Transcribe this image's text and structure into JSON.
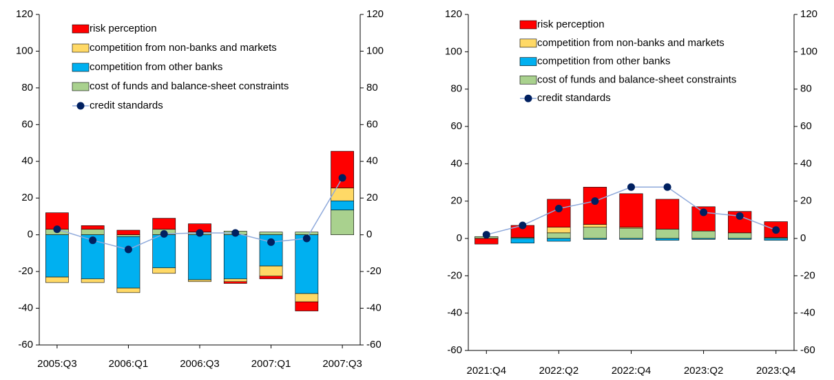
{
  "chart_data": [
    {
      "type": "bar",
      "categories": [
        "2005:Q3",
        null,
        "2006:Q1",
        null,
        "2006:Q3",
        null,
        "2007:Q1",
        null,
        "2007:Q3"
      ],
      "series": [
        {
          "name": "risk perception",
          "color": "#ff0000",
          "values": [
            9,
            2,
            2.5,
            6,
            4.5,
            -1,
            -1.5,
            -5,
            20
          ]
        },
        {
          "name": "competition from non-banks and markets",
          "color": "#ffd966",
          "values": [
            -3,
            -2,
            -2.5,
            -3,
            -1,
            -1.5,
            -5.5,
            -4.5,
            7
          ]
        },
        {
          "name": "competition from other banks",
          "color": "#00b0f0",
          "values": [
            -23,
            -24,
            -28,
            -18,
            -24.5,
            -24,
            -17,
            -32,
            5
          ]
        },
        {
          "name": "cost of funds and balance-sheet constraints",
          "color": "#a9d18e",
          "values": [
            3,
            3,
            -1,
            3,
            1.5,
            2,
            1.5,
            1.5,
            13.5
          ]
        },
        {
          "name": "credit standards",
          "type": "line",
          "color": "#8ea9db",
          "marker_color": "#002060",
          "values": [
            3,
            -3,
            -8,
            0.5,
            1,
            1,
            -4,
            -2,
            31
          ]
        }
      ],
      "ylim": [
        -60,
        120
      ],
      "yticks": [
        -60,
        -40,
        -20,
        0,
        20,
        40,
        60,
        80,
        100,
        120
      ],
      "y2lim": [
        -60,
        120
      ],
      "y2ticks": [
        -60,
        -40,
        -20,
        0,
        20,
        40,
        60,
        80,
        100,
        120
      ],
      "grid": false,
      "legend": "top-left"
    },
    {
      "type": "bar",
      "categories": [
        "2021:Q4",
        null,
        "2022:Q2",
        null,
        "2022:Q4",
        null,
        "2023:Q2",
        null,
        "2023:Q4"
      ],
      "series": [
        {
          "name": "risk perception",
          "color": "#ff0000",
          "values": [
            -3,
            6.5,
            15,
            20,
            18,
            16,
            13,
            11.5,
            8.5
          ]
        },
        {
          "name": "competition from non-banks and markets",
          "color": "#ffd966",
          "values": [
            0,
            0,
            3,
            1.5,
            0.5,
            0,
            0,
            0,
            0
          ]
        },
        {
          "name": "competition from other banks",
          "color": "#00b0f0",
          "values": [
            0,
            -2.5,
            -1.5,
            -0.5,
            -0.5,
            -1,
            -0.5,
            -0.5,
            -1
          ]
        },
        {
          "name": "cost of funds and balance-sheet constraints",
          "color": "#a9d18e",
          "values": [
            1,
            0.5,
            3,
            6,
            5.5,
            5,
            4,
            3,
            0.5
          ]
        },
        {
          "name": "credit standards",
          "type": "line",
          "color": "#8ea9db",
          "marker_color": "#002060",
          "values": [
            2,
            7,
            16,
            20,
            27.5,
            27.5,
            14,
            12,
            4.5
          ]
        }
      ],
      "ylim": [
        -60,
        120
      ],
      "yticks": [
        -60,
        -40,
        -20,
        0,
        20,
        40,
        60,
        80,
        100,
        120
      ],
      "y2lim": [
        -60,
        120
      ],
      "y2ticks": [
        -60,
        -40,
        -20,
        0,
        20,
        40,
        60,
        80,
        100,
        120
      ],
      "grid": false,
      "legend": "top-left"
    }
  ]
}
